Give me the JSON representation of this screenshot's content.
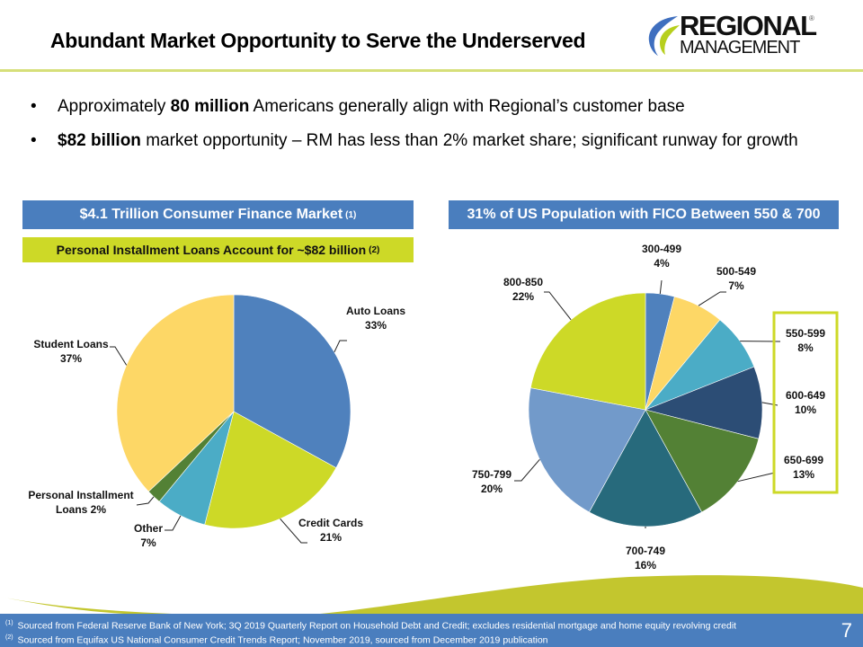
{
  "header": {
    "title": "Abundant Market Opportunity to Serve the Underserved",
    "logo": {
      "line1": "REGIONAL",
      "line2": "MANAGEMENT",
      "reg": "®"
    }
  },
  "bullets": [
    {
      "bold": "80 million",
      "before": "Approximately ",
      "after": " Americans generally align with Regional’s customer base"
    },
    {
      "bold": "$82 billion",
      "before": "",
      "after": " market opportunity – RM has less than 2% market share; significant runway for growth"
    }
  ],
  "bullet_glyph": "•",
  "left_panel": {
    "band_title": "$4.1 Trillion Consumer Finance Market",
    "band_note": "(1)",
    "sub_band_title": "Personal Installment Loans Account for ~$82 billion",
    "sub_band_note": "(2)"
  },
  "right_panel": {
    "band_title": "31% of US Population with FICO Between 550 & 700"
  },
  "colors": {
    "brand_blue": "#4a7ebe",
    "brand_green": "#cdd927",
    "highlight_box": "#cdd927"
  },
  "chart_data": [
    {
      "type": "pie",
      "title": "$4.1 Trillion Consumer Finance Market",
      "start_angle": "12 o'clock, clockwise",
      "slices": [
        {
          "label": "Auto Loans",
          "value": 33,
          "display": "33%",
          "color": "#4f81bd"
        },
        {
          "label": "Credit Cards",
          "value": 21,
          "display": "21%",
          "color": "#cdd927"
        },
        {
          "label": "Other",
          "value": 7,
          "display": "7%",
          "color": "#4bacc6"
        },
        {
          "label": "Personal Installment Loans",
          "value": 2,
          "display": "2%",
          "color": "#538135"
        },
        {
          "label": "Student Loans",
          "value": 37,
          "display": "37%",
          "color": "#fdd766"
        }
      ],
      "labels": [
        {
          "line1": "Auto Loans",
          "line2": "33%"
        },
        {
          "line1": "Credit Cards",
          "line2": "21%"
        },
        {
          "line1": "Other",
          "line2": "7%"
        },
        {
          "line1": "Personal Installment",
          "line2": "Loans 2%"
        },
        {
          "line1": "Student Loans",
          "line2": "37%"
        }
      ]
    },
    {
      "type": "pie",
      "title": "31% of US Population with FICO Between 550 & 700",
      "start_angle": "12 o'clock, clockwise",
      "highlighted": [
        "550-599",
        "600-649",
        "650-699"
      ],
      "slices": [
        {
          "label": "300-499",
          "value": 4,
          "display": "4%",
          "color": "#4f81bd"
        },
        {
          "label": "500-549",
          "value": 7,
          "display": "7%",
          "color": "#fdd766"
        },
        {
          "label": "550-599",
          "value": 8,
          "display": "8%",
          "color": "#4bacc6"
        },
        {
          "label": "600-649",
          "value": 10,
          "display": "10%",
          "color": "#2c4d75"
        },
        {
          "label": "650-699",
          "value": 13,
          "display": "13%",
          "color": "#538135"
        },
        {
          "label": "700-749",
          "value": 16,
          "display": "16%",
          "color": "#276a7c"
        },
        {
          "label": "750-799",
          "value": 20,
          "display": "20%",
          "color": "#729aca"
        },
        {
          "label": "800-850",
          "value": 22,
          "display": "22%",
          "color": "#cdd927"
        }
      ]
    }
  ],
  "footer": {
    "notes": [
      {
        "mark": "(1)",
        "text": "Sourced from Federal Reserve Bank of New York; 3Q 2019 Quarterly Report on Household Debt and Credit; excludes residential mortgage and home equity revolving credit"
      },
      {
        "mark": "(2)",
        "text": "Sourced from Equifax US National Consumer Credit Trends Report;  November 2019, sourced from December 2019 publication"
      }
    ],
    "page_number": "7"
  }
}
